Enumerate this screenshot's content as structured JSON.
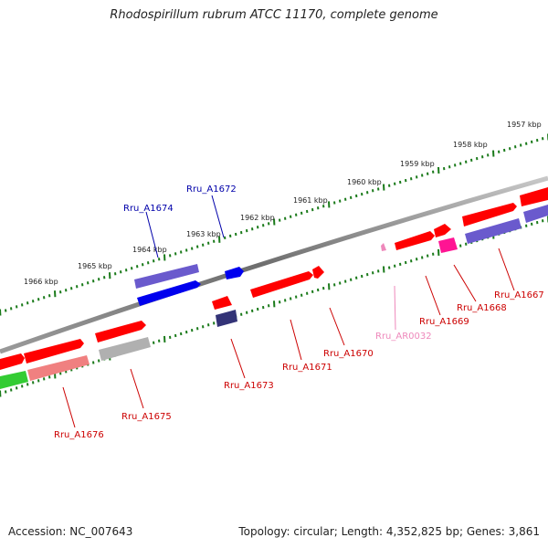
{
  "title": "Rhodospirillum rubrum ATCC 11170, complete genome",
  "accession": "Accession: NC_007643",
  "topology": "Topology: circular; Length: 4,352,825 bp; Genes: 3,861",
  "colors": {
    "backbone": "#7f7f7f",
    "ticks": "#1a7a1a",
    "red": "#ff0000",
    "blue": "#0000ff",
    "purple": "#6a5acd",
    "navy": "#333377",
    "grey": "#b0b0b0",
    "green": "#33cc33",
    "pink": "#ff1493",
    "salmon": "#f08080",
    "lightpink": "#ee88bb",
    "label_red": "#cc0000",
    "label_blue": "#0000aa",
    "label_pink": "#ee88bb"
  },
  "kbp_labels": [
    "1957 kbp",
    "1958 kbp",
    "1959 kbp",
    "1960 kbp",
    "1961 kbp",
    "1962 kbp",
    "1963 kbp",
    "1964 kbp",
    "1965 kbp",
    "1966 kbp"
  ],
  "gene_labels": [
    "Rru_A1667",
    "Rru_A1668",
    "Rru_A1669",
    "Rru_AR0032",
    "Rru_A1670",
    "Rru_A1671",
    "Rru_A1672",
    "Rru_A1673",
    "Rru_A1674",
    "Rru_A1675",
    "Rru_A1676"
  ]
}
